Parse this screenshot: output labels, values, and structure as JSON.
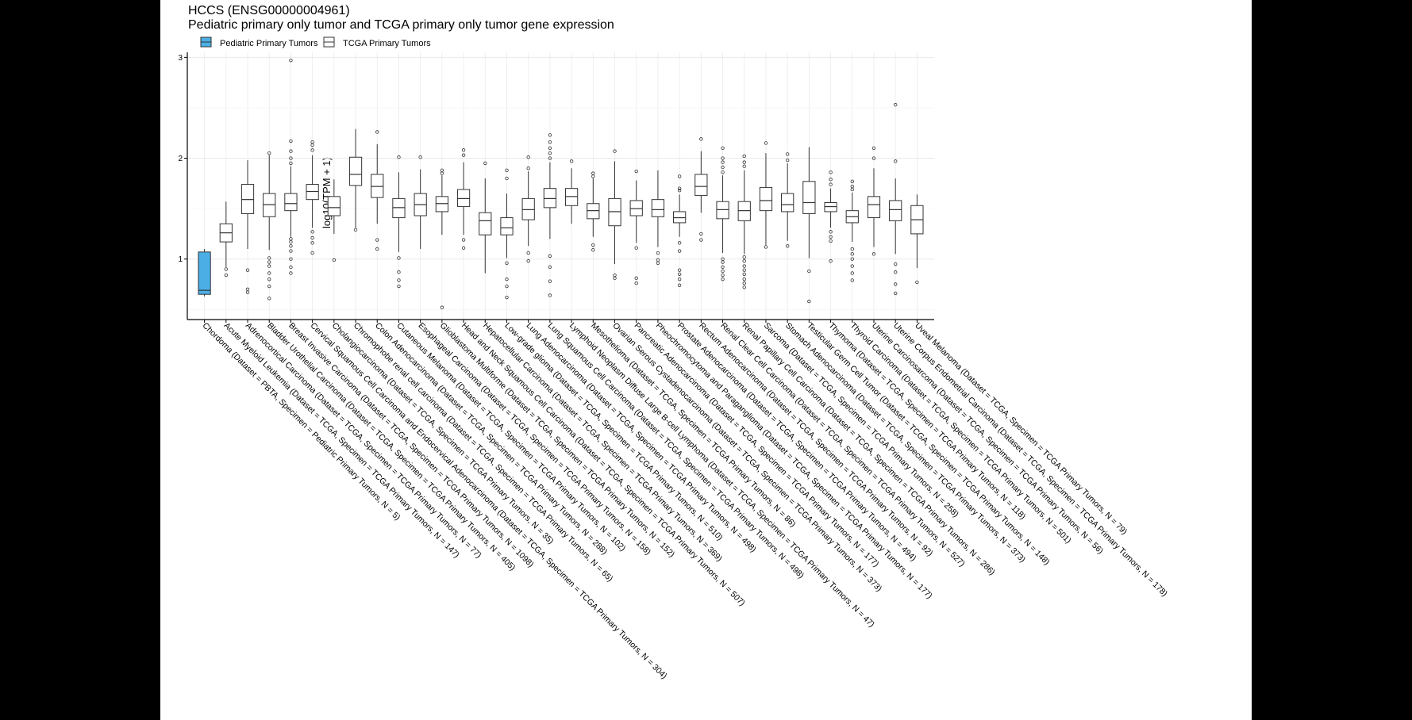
{
  "chart_data": {
    "type": "boxplot",
    "title": "HCCS (ENSG00000004961)",
    "subtitle": "Pediatric primary only tumor and TCGA primary only tumor gene expression",
    "ylabel": "log10(TPM + 1)",
    "xlabel": "",
    "ylim": [
      0.4,
      3.05
    ],
    "yticks": [
      1,
      2,
      3
    ],
    "grid": true,
    "legend_position": "top-left",
    "legend": [
      {
        "name": "Pediatric Primary Tumors",
        "color": "#4BAFE6"
      },
      {
        "name": "TCGA Primary Tumors",
        "color": "#FFFFFF"
      }
    ],
    "categories": [
      "Chordoma (Dataset = PBTA, Specimen = Pediatric Primary Tumors, N = 5)",
      "Acute Myeloid Leukemia (Dataset = TCGA, Specimen = TCGA Primary Tumors, N = 147)",
      "Adrenocortical Carcinoma (Dataset = TCGA, Specimen = TCGA Primary Tumors, N = 77)",
      "Bladder Urothelial Carcinoma (Dataset = TCGA, Specimen = TCGA Primary Tumors, N = 405)",
      "Breast Invasive Carcinoma (Dataset = TCGA, Specimen = TCGA Primary Tumors, N = 1098)",
      "Cervical Squamous Cell Carcinoma and Endocervical Adenocarcinoma (Dataset = TCGA, Specimen = TCGA Primary Tumors, N = 304)",
      "Cholangiocarcinoma (Dataset = TCGA, Specimen = TCGA Primary Tumors, N = 35)",
      "Chromophobe renal cell carcinoma (Dataset = TCGA, Specimen = TCGA Primary Tumors, N = 65)",
      "Colon Adenocarcinoma (Dataset = TCGA, Specimen = TCGA Primary Tumors, N = 288)",
      "Cutaneous Melanoma (Dataset = TCGA, Specimen = TCGA Primary Tumors, N = 102)",
      "Esophageal Carcinoma (Dataset = TCGA, Specimen = TCGA Primary Tumors, N = 158)",
      "Glioblastoma Multiforme (Dataset = TCGA, Specimen = TCGA Primary Tumors, N = 152)",
      "Head and Neck Squamous Cell Carcinoma (Dataset = TCGA, Specimen = TCGA Primary Tumors, N = 507)",
      "Hepatocellular Carcinoma (Dataset = TCGA, Specimen = TCGA Primary Tumors, N = 369)",
      "Low-grade glioma (Dataset = TCGA, Specimen = TCGA Primary Tumors, N = 510)",
      "Lung Adenocarcinoma (Dataset = TCGA, Specimen = TCGA Primary Tumors, N = 498)",
      "Lung Squamous Cell Carcinoma (Dataset = TCGA, Specimen = TCGA Primary Tumors, N = 498)",
      "Lymphoid Neoplasm Diffuse Large B-cell Lymphoma (Dataset = TCGA, Specimen = TCGA Primary Tumors, N = 47)",
      "Mesothelioma (Dataset = TCGA, Specimen = TCGA Primary Tumors, N = 86)",
      "Ovarian Serous Cystadenocarcinoma (Dataset = TCGA, Specimen = TCGA Primary Tumors, N = 373)",
      "Pancreatic Adenocarcinoma (Dataset = TCGA, Specimen = TCGA Primary Tumors, N = 177)",
      "Pheochromocytoma and Paraganglioma (Dataset = TCGA, Specimen = TCGA Primary Tumors, N = 177)",
      "Prostate Adenocarcinoma (Dataset = TCGA, Specimen = TCGA Primary Tumors, N = 494)",
      "Rectum Adenocarcinoma (Dataset = TCGA, Specimen = TCGA Primary Tumors, N = 92)",
      "Renal Clear Cell Carcinoma (Dataset = TCGA, Specimen = TCGA Primary Tumors, N = 527)",
      "Renal Papillary Cell Carcinoma (Dataset = TCGA, Specimen = TCGA Primary Tumors, N = 286)",
      "Sarcoma (Dataset = TCGA, Specimen = TCGA Primary Tumors, N = 258)",
      "Stomach Adenocarcinoma (Dataset = TCGA, Specimen = TCGA Primary Tumors, N = 373)",
      "Testicular Germ Cell Tumor (Dataset = TCGA, Specimen = TCGA Primary Tumors, N = 148)",
      "Thymoma (Dataset = TCGA, Specimen = TCGA Primary Tumors, N = 118)",
      "Thyroid Carcinoma (Dataset = TCGA, Specimen = TCGA Primary Tumors, N = 501)",
      "Uterine Carcinosarcoma (Dataset = TCGA, Specimen = TCGA Primary Tumors, N = 56)",
      "Uterine Corpus Endometrial Carcinoma (Dataset = TCGA, Specimen = TCGA Primary Tumors, N = 178)",
      "Uveal Melanoma (Dataset = TCGA, Specimen = TCGA Primary Tumors, N = 79)"
    ],
    "boxes": [
      {
        "group": "Pediatric Primary Tumors",
        "whisker_low": 0.63,
        "q1": 0.65,
        "median": 0.69,
        "q3": 1.07,
        "whisker_high": 1.1,
        "outliers": []
      },
      {
        "group": "TCGA Primary Tumors",
        "whisker_low": 0.92,
        "q1": 1.17,
        "median": 1.26,
        "q3": 1.35,
        "whisker_high": 1.57,
        "outliers": [
          0.84,
          0.9
        ]
      },
      {
        "group": "TCGA Primary Tumors",
        "whisker_low": 1.1,
        "q1": 1.45,
        "median": 1.59,
        "q3": 1.74,
        "whisker_high": 1.98,
        "outliers": [
          0.67,
          0.7,
          0.89
        ]
      },
      {
        "group": "TCGA Primary Tumors",
        "whisker_low": 1.09,
        "q1": 1.42,
        "median": 1.54,
        "q3": 1.65,
        "whisker_high": 2.03,
        "outliers": [
          0.61,
          0.73,
          0.8,
          0.86,
          0.93,
          0.97,
          1.01,
          2.05
        ]
      },
      {
        "group": "TCGA Primary Tumors",
        "whisker_low": 1.22,
        "q1": 1.48,
        "median": 1.55,
        "q3": 1.65,
        "whisker_high": 1.92,
        "outliers": [
          0.86,
          0.92,
          1.0,
          1.08,
          1.13,
          1.17,
          1.2,
          1.95,
          2.0,
          2.07,
          2.17,
          2.97
        ]
      },
      {
        "group": "TCGA Primary Tumors",
        "whisker_low": 1.31,
        "q1": 1.59,
        "median": 1.67,
        "q3": 1.74,
        "whisker_high": 2.03,
        "outliers": [
          1.06,
          1.16,
          1.21,
          1.27,
          2.08,
          2.13,
          2.16
        ]
      },
      {
        "group": "TCGA Primary Tumors",
        "whisker_low": 1.25,
        "q1": 1.43,
        "median": 1.51,
        "q3": 1.62,
        "whisker_high": 1.79,
        "outliers": [
          0.99
        ]
      },
      {
        "group": "TCGA Primary Tumors",
        "whisker_low": 1.31,
        "q1": 1.73,
        "median": 1.84,
        "q3": 2.01,
        "whisker_high": 2.29,
        "outliers": [
          1.29
        ]
      },
      {
        "group": "TCGA Primary Tumors",
        "whisker_low": 1.35,
        "q1": 1.61,
        "median": 1.72,
        "q3": 1.84,
        "whisker_high": 2.14,
        "outliers": [
          1.1,
          1.19,
          2.26
        ]
      },
      {
        "group": "TCGA Primary Tumors",
        "whisker_low": 1.07,
        "q1": 1.41,
        "median": 1.51,
        "q3": 1.6,
        "whisker_high": 1.86,
        "outliers": [
          0.73,
          0.79,
          0.87,
          1.01,
          2.01
        ]
      },
      {
        "group": "TCGA Primary Tumors",
        "whisker_low": 1.1,
        "q1": 1.43,
        "median": 1.54,
        "q3": 1.65,
        "whisker_high": 1.89,
        "outliers": [
          2.01
        ]
      },
      {
        "group": "TCGA Primary Tumors",
        "whisker_low": 1.24,
        "q1": 1.47,
        "median": 1.55,
        "q3": 1.62,
        "whisker_high": 1.83,
        "outliers": [
          0.52,
          1.85,
          1.88
        ]
      },
      {
        "group": "TCGA Primary Tumors",
        "whisker_low": 1.24,
        "q1": 1.52,
        "median": 1.6,
        "q3": 1.69,
        "whisker_high": 1.96,
        "outliers": [
          1.11,
          1.19,
          2.03,
          2.08
        ]
      },
      {
        "group": "TCGA Primary Tumors",
        "whisker_low": 0.86,
        "q1": 1.24,
        "median": 1.38,
        "q3": 1.46,
        "whisker_high": 1.8,
        "outliers": [
          1.95
        ]
      },
      {
        "group": "TCGA Primary Tumors",
        "whisker_low": 1.01,
        "q1": 1.24,
        "median": 1.31,
        "q3": 1.41,
        "whisker_high": 1.65,
        "outliers": [
          0.62,
          0.73,
          0.8,
          0.96,
          1.8,
          1.88
        ]
      },
      {
        "group": "TCGA Primary Tumors",
        "whisker_low": 1.13,
        "q1": 1.39,
        "median": 1.49,
        "q3": 1.6,
        "whisker_high": 1.87,
        "outliers": [
          0.98,
          1.06,
          1.9,
          2.01
        ]
      },
      {
        "group": "TCGA Primary Tumors",
        "whisker_low": 1.2,
        "q1": 1.51,
        "median": 1.6,
        "q3": 1.7,
        "whisker_high": 1.96,
        "outliers": [
          0.64,
          0.78,
          0.92,
          1.03,
          2.0,
          2.05,
          2.1,
          2.16,
          2.23
        ]
      },
      {
        "group": "TCGA Primary Tumors",
        "whisker_low": 1.35,
        "q1": 1.53,
        "median": 1.62,
        "q3": 1.7,
        "whisker_high": 1.9,
        "outliers": [
          1.97
        ]
      },
      {
        "group": "TCGA Primary Tumors",
        "whisker_low": 1.22,
        "q1": 1.4,
        "median": 1.48,
        "q3": 1.55,
        "whisker_high": 1.8,
        "outliers": [
          1.09,
          1.14,
          1.82,
          1.85
        ]
      },
      {
        "group": "TCGA Primary Tumors",
        "whisker_low": 0.95,
        "q1": 1.33,
        "median": 1.47,
        "q3": 1.6,
        "whisker_high": 1.97,
        "outliers": [
          0.81,
          0.84,
          2.07
        ]
      },
      {
        "group": "TCGA Primary Tumors",
        "whisker_low": 1.16,
        "q1": 1.43,
        "median": 1.5,
        "q3": 1.58,
        "whisker_high": 1.78,
        "outliers": [
          0.76,
          0.81,
          1.11,
          1.87
        ]
      },
      {
        "group": "TCGA Primary Tumors",
        "whisker_low": 1.12,
        "q1": 1.42,
        "median": 1.49,
        "q3": 1.59,
        "whisker_high": 1.88,
        "outliers": [
          0.96,
          0.99,
          1.06
        ]
      },
      {
        "group": "TCGA Primary Tumors",
        "whisker_low": 1.22,
        "q1": 1.36,
        "median": 1.41,
        "q3": 1.47,
        "whisker_high": 1.64,
        "outliers": [
          0.74,
          0.8,
          0.85,
          0.89,
          1.08,
          1.16,
          1.68,
          1.7,
          1.82
        ]
      },
      {
        "group": "TCGA Primary Tumors",
        "whisker_low": 1.46,
        "q1": 1.63,
        "median": 1.72,
        "q3": 1.84,
        "whisker_high": 2.07,
        "outliers": [
          1.19,
          1.25,
          2.19
        ]
      },
      {
        "group": "TCGA Primary Tumors",
        "whisker_low": 1.06,
        "q1": 1.4,
        "median": 1.49,
        "q3": 1.57,
        "whisker_high": 1.83,
        "outliers": [
          0.8,
          0.84,
          0.88,
          0.92,
          0.97,
          1.0,
          1.86,
          1.91,
          1.96,
          2.0,
          2.1
        ]
      },
      {
        "group": "TCGA Primary Tumors",
        "whisker_low": 1.05,
        "q1": 1.38,
        "median": 1.48,
        "q3": 1.57,
        "whisker_high": 1.88,
        "outliers": [
          0.72,
          0.76,
          0.8,
          0.85,
          0.89,
          0.93,
          0.98,
          1.02,
          1.92,
          1.96,
          2.02
        ]
      },
      {
        "group": "TCGA Primary Tumors",
        "whisker_low": 1.14,
        "q1": 1.48,
        "median": 1.58,
        "q3": 1.71,
        "whisker_high": 2.05,
        "outliers": [
          1.12,
          2.15
        ]
      },
      {
        "group": "TCGA Primary Tumors",
        "whisker_low": 1.18,
        "q1": 1.47,
        "median": 1.54,
        "q3": 1.65,
        "whisker_high": 1.95,
        "outliers": [
          1.13,
          1.98,
          2.04
        ]
      },
      {
        "group": "TCGA Primary Tumors",
        "whisker_low": 1.01,
        "q1": 1.45,
        "median": 1.56,
        "q3": 1.77,
        "whisker_high": 2.11,
        "outliers": [
          0.58,
          0.88
        ]
      },
      {
        "group": "TCGA Primary Tumors",
        "whisker_low": 1.31,
        "q1": 1.47,
        "median": 1.52,
        "q3": 1.56,
        "whisker_high": 1.7,
        "outliers": [
          0.98,
          1.18,
          1.22,
          1.27,
          1.74,
          1.79,
          1.86
        ]
      },
      {
        "group": "TCGA Primary Tumors",
        "whisker_low": 1.17,
        "q1": 1.36,
        "median": 1.42,
        "q3": 1.48,
        "whisker_high": 1.66,
        "outliers": [
          0.79,
          0.86,
          0.93,
          1.0,
          1.05,
          1.1,
          1.69,
          1.72,
          1.77
        ]
      },
      {
        "group": "TCGA Primary Tumors",
        "whisker_low": 1.12,
        "q1": 1.41,
        "median": 1.54,
        "q3": 1.62,
        "whisker_high": 1.9,
        "outliers": [
          1.05,
          2.0,
          2.1
        ]
      },
      {
        "group": "TCGA Primary Tumors",
        "whisker_low": 1.05,
        "q1": 1.38,
        "median": 1.49,
        "q3": 1.58,
        "whisker_high": 1.8,
        "outliers": [
          0.66,
          0.75,
          0.87,
          0.95,
          1.97,
          2.53
        ]
      },
      {
        "group": "TCGA Primary Tumors",
        "whisker_low": 0.91,
        "q1": 1.25,
        "median": 1.39,
        "q3": 1.53,
        "whisker_high": 1.64,
        "outliers": [
          0.77
        ]
      }
    ]
  }
}
